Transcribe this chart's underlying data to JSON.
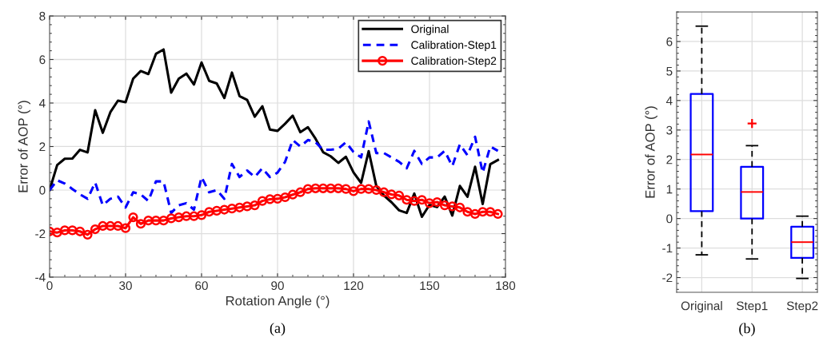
{
  "chart_data": [
    {
      "type": "line",
      "xlabel": "Rotation Angle (°)",
      "ylabel": "Error of AOP (°)",
      "xlim": [
        0,
        180
      ],
      "ylim": [
        -4,
        8
      ],
      "xticks": [
        0,
        30,
        60,
        90,
        120,
        150,
        180
      ],
      "yticks": [
        -4,
        -2,
        0,
        2,
        4,
        6,
        8
      ],
      "grid": true,
      "legend": "top right",
      "annotations": [
        "(a)"
      ],
      "x": [
        0,
        3,
        6,
        9,
        12,
        15,
        18,
        21,
        24,
        27,
        30,
        33,
        36,
        39,
        42,
        45,
        48,
        51,
        54,
        57,
        60,
        63,
        66,
        69,
        72,
        75,
        78,
        81,
        84,
        87,
        90,
        93,
        96,
        99,
        102,
        105,
        108,
        111,
        114,
        117,
        120,
        123,
        126,
        129,
        132,
        135,
        138,
        141,
        144,
        147,
        150,
        153,
        156,
        159,
        162,
        165,
        168,
        171,
        174,
        177
      ],
      "series": [
        {
          "name": "Original",
          "color": "#000000",
          "line_style": "solid",
          "marker": "none",
          "values": [
            0,
            1.15,
            1.44,
            1.45,
            1.85,
            1.73,
            3.67,
            2.63,
            3.58,
            4.11,
            4.04,
            5.12,
            5.47,
            5.33,
            6.26,
            6.46,
            4.48,
            5.12,
            5.35,
            4.85,
            5.86,
            5.02,
            4.9,
            4.23,
            5.4,
            4.32,
            4.14,
            3.37,
            3.85,
            2.78,
            2.72,
            3.05,
            3.42,
            2.66,
            2.89,
            2.36,
            1.74,
            1.55,
            1.25,
            1.53,
            0.81,
            0.33,
            1.79,
            0.19,
            -0.25,
            -0.56,
            -0.93,
            -1.05,
            -0.16,
            -1.23,
            -0.68,
            -0.78,
            -0.3,
            -1.17,
            0.19,
            -0.31,
            1.07,
            -0.64,
            1.19,
            1.38
          ]
        },
        {
          "name": "Calibration-Step1",
          "color": "#0000ff",
          "line_style": "dashed",
          "marker": "none",
          "values": [
            0,
            0.45,
            0.3,
            0.05,
            -0.2,
            -0.4,
            0.35,
            -0.7,
            -0.4,
            -0.3,
            -0.8,
            -0.1,
            -0.2,
            -0.5,
            0.4,
            0.4,
            -1.05,
            -0.7,
            -0.6,
            -0.9,
            0.6,
            -0.1,
            0,
            -0.4,
            1.2,
            0.6,
            0.9,
            0.6,
            1,
            0.6,
            0.8,
            1.3,
            2.3,
            2,
            2.3,
            2.2,
            1.85,
            1.85,
            1.9,
            2.2,
            1.75,
            1.5,
            3.15,
            1.7,
            1.7,
            1.5,
            1.3,
            1,
            1.8,
            1.2,
            1.5,
            1.5,
            1.8,
            1.1,
            2.1,
            1.6,
            2.45,
            0.8,
            2,
            1.8
          ]
        },
        {
          "name": "Calibration-Step2",
          "color": "#ff0000",
          "line_style": "solid",
          "marker": "circle",
          "values": [
            -1.9,
            -1.95,
            -1.85,
            -1.85,
            -1.9,
            -2.05,
            -1.8,
            -1.65,
            -1.65,
            -1.65,
            -1.75,
            -1.25,
            -1.55,
            -1.4,
            -1.4,
            -1.4,
            -1.3,
            -1.25,
            -1.2,
            -1.2,
            -1.15,
            -1,
            -0.95,
            -0.9,
            -0.85,
            -0.8,
            -0.75,
            -0.7,
            -0.5,
            -0.42,
            -0.4,
            -0.33,
            -0.21,
            -0.1,
            0.05,
            0.08,
            0.08,
            0.08,
            0.08,
            0.05,
            -0.05,
            0.05,
            0.05,
            0,
            -0.1,
            -0.2,
            -0.25,
            -0.45,
            -0.5,
            -0.45,
            -0.6,
            -0.55,
            -0.7,
            -0.75,
            -0.8,
            -1,
            -1.1,
            -1,
            -1,
            -1.1
          ]
        }
      ]
    },
    {
      "type": "box",
      "ylabel": "Error of AOP (°)",
      "ylim": [
        -2.5,
        7
      ],
      "yticks": [
        -2,
        -1,
        0,
        1,
        2,
        3,
        4,
        5,
        6
      ],
      "grid": true,
      "annotations": [
        "(b)"
      ],
      "categories": [
        "Original",
        "Step1",
        "Step2"
      ],
      "series": [
        {
          "color": "#0000ff",
          "boxes": [
            {
              "low": -1.23,
              "q1": 0.25,
              "median": 2.17,
              "q3": 4.22,
              "high": 6.52
            },
            {
              "low": -1.37,
              "q1": 0.0,
              "median": 0.9,
              "q3": 1.75,
              "high": 2.47,
              "outliers": [
                3.22
              ]
            },
            {
              "low": -2.03,
              "q1": -1.33,
              "median": -0.8,
              "q3": -0.28,
              "high": 0.08
            }
          ]
        }
      ]
    }
  ]
}
